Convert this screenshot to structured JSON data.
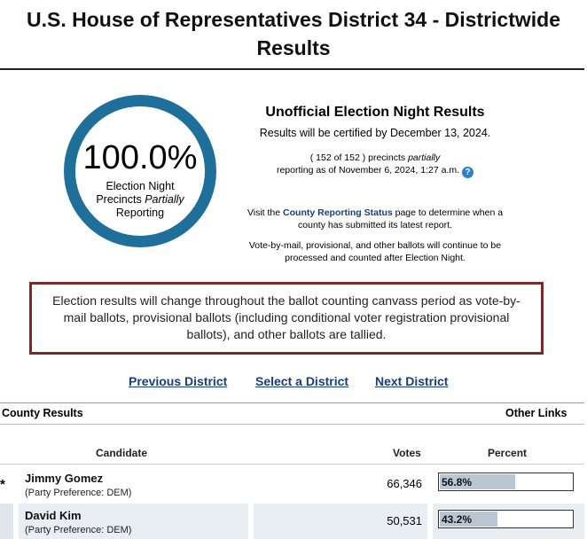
{
  "page": {
    "title_line1": "U.S. House of Representatives District 34 - Districtwide",
    "title_line2": "Results"
  },
  "summary": {
    "percent": "100.0%",
    "caption_line1": "Election Night",
    "caption_line2_a": "Precincts ",
    "caption_line2_b": "Partially",
    "caption_line3": "Reporting",
    "heading": "Unofficial Election Night Results",
    "certified": "Results will be certified by December 13, 2024.",
    "precincts_a": "( 152 of 152 ) precincts ",
    "precincts_b": "partially",
    "reporting_as_of": "reporting as of November 6, 2024, 1:27 a.m.",
    "help_icon": "question-circle-icon",
    "visit_a": "Visit the ",
    "visit_link": "County Reporting Status",
    "visit_b": " page to determine when a county has submitted its latest report.",
    "vbm_text": "Vote-by-mail, provisional, and other ballots will continue to be processed and counted after Election Night."
  },
  "notice": {
    "text": "Election results will change throughout the ballot counting canvass period as vote-by-mail ballots, provisional ballots (including conditional voter registration provisional ballots), and other ballots are tallied."
  },
  "nav": {
    "previous": "Previous District",
    "select": "Select a District",
    "next": "Next District"
  },
  "sections": {
    "county_results": "County Results",
    "other_links": "Other Links"
  },
  "table": {
    "headers": {
      "candidate": "Candidate",
      "votes": "Votes",
      "percent": "Percent"
    },
    "rows": [
      {
        "marker": "*",
        "name": "Jimmy Gomez",
        "party": "(Party Preference: DEM)",
        "votes": "66,346",
        "percent_label": "56.8%",
        "percent_value": 56.8
      },
      {
        "marker": "",
        "name": "David Kim",
        "party": "(Party Preference: DEM)",
        "votes": "50,531",
        "percent_label": "43.2%",
        "percent_value": 43.2
      }
    ]
  },
  "colors": {
    "ring": "#1f6f9b",
    "link": "#1a3d7c",
    "notice_border": "#7a2a2a",
    "bar_fill": "#b9c7d4"
  }
}
